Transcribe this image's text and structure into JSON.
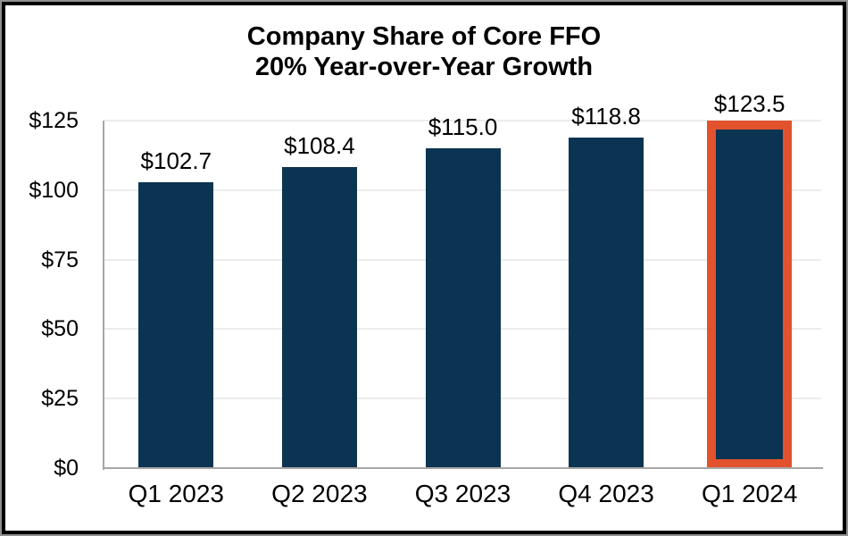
{
  "frame": {
    "background": "#FFFFFF",
    "border_color": "#000000",
    "outer_edge_color": "#8F8F8F"
  },
  "chart_data": {
    "type": "bar",
    "title": "Company Share of Core FFO",
    "subtitle": "20% Year-over-Year Growth",
    "categories": [
      "Q1 2023",
      "Q2 2023",
      "Q3 2023",
      "Q4 2023",
      "Q1 2024"
    ],
    "values": [
      102.7,
      108.4,
      115.0,
      118.8,
      123.5
    ],
    "data_labels": [
      "$102.7",
      "$108.4",
      "$115.0",
      "$118.8",
      "$123.5"
    ],
    "y_ticks": [
      {
        "label": "$0",
        "value": 0
      },
      {
        "label": "$25",
        "value": 25
      },
      {
        "label": "$50",
        "value": 50
      },
      {
        "label": "$75",
        "value": 75
      },
      {
        "label": "$100",
        "value": 100
      },
      {
        "label": "$125",
        "value": 125
      }
    ],
    "ylim": [
      0,
      125
    ],
    "grid": true,
    "legend_position": "none",
    "highlight_index": 4,
    "colors": {
      "bar": "#0B3452",
      "highlight_border": "#E2522C",
      "gridline": "#ECECEC",
      "axis_line": "#A6A6A6",
      "text": "#000000"
    }
  }
}
